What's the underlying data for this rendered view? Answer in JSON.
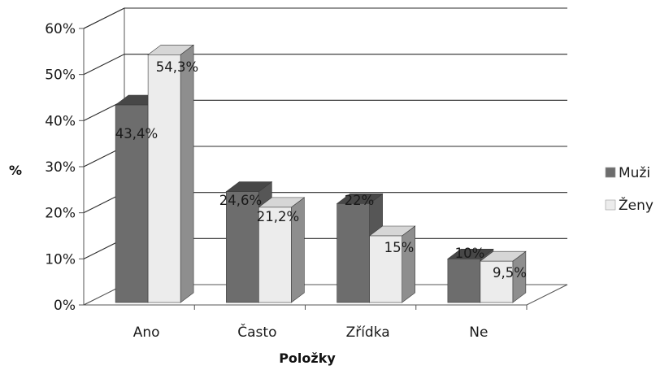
{
  "chart_data": {
    "type": "bar",
    "title": "",
    "xlabel": "Položky",
    "ylabel": "%",
    "categories": [
      "Ano",
      "Často",
      "Zřídka",
      "Ne"
    ],
    "series": [
      {
        "name": "Muži",
        "values": [
          43.4,
          24.6,
          22,
          10
        ],
        "labels": [
          "43,4%",
          "24,6%",
          "22%",
          "10%"
        ]
      },
      {
        "name": "Ženy",
        "values": [
          54.3,
          21.2,
          15,
          9.5
        ],
        "labels": [
          "54,3%",
          "21,2%",
          "15%",
          "9,5%"
        ]
      }
    ],
    "ylim": [
      0,
      60
    ],
    "yticks": [
      "0%",
      "10%",
      "20%",
      "30%",
      "40%",
      "50%",
      "60%"
    ],
    "grid": true,
    "legend_position": "right",
    "style": "3d-clustered-column",
    "colors": {
      "Muži": {
        "front": "#6d6d6d",
        "top": "#474747",
        "side": "#565656"
      },
      "Ženy": {
        "front": "#ececec",
        "top": "#d6d6d6",
        "side": "#8e8e8e"
      },
      "gridline": "#2b2b2b",
      "axis": "#555555"
    }
  }
}
